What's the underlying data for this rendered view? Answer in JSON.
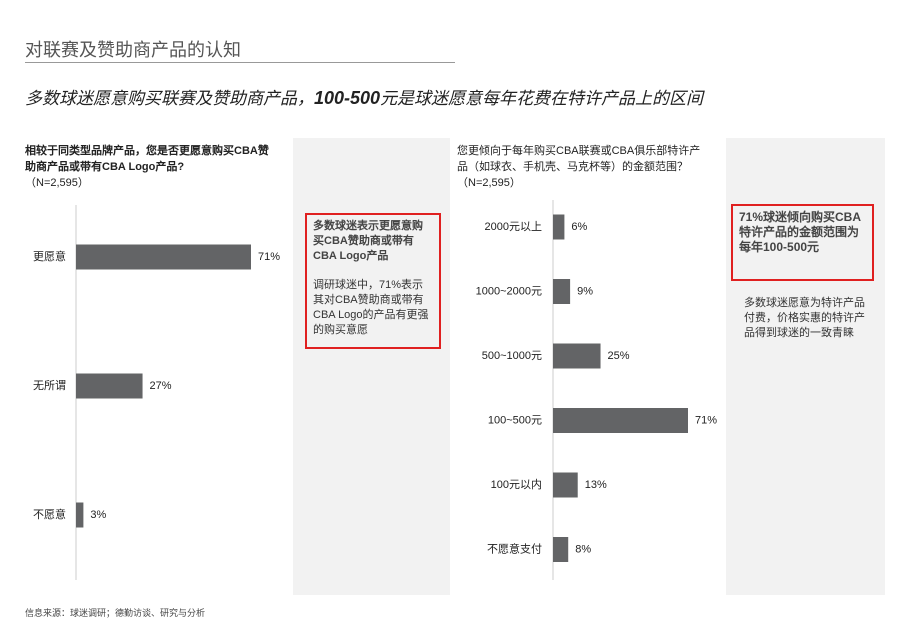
{
  "page": {
    "title": "对联赛及赞助商产品的认知",
    "headline": [
      "多数球迷愿意购买联赛及赞助商产品，",
      "100-500",
      "元是球迷愿意每年花费在特许产品上的区间"
    ],
    "callouts": [
      {
        "heading": "多数球迷表示更愿意购买CBA赞助商或带有CBA Logo产品",
        "body": "调研球迷中，71%表示其对CBA赞助商或带有CBA Logo的产品有更强的购买意愿"
      },
      {
        "heading": "71%球迷倾向购买CBA特许产品的金额范围为每年100-500元",
        "body": "多数球迷愿意为特许产品付费，价格实惠的特许产品得到球迷的一致青睐"
      }
    ],
    "source": "信息来源：球迷调研；德勤访谈、研究与分析"
  },
  "chart_data": [
    {
      "type": "bar",
      "orientation": "horizontal",
      "title": "相较于同类型品牌产品，您是否更愿意购买CBA赞助商产品或带有CBA Logo产品?",
      "subtitle": "（N=2,595）",
      "categories": [
        "更愿意",
        "无所谓",
        "不愿意"
      ],
      "values": [
        71,
        27,
        3
      ],
      "value_labels": [
        "71%",
        "27%",
        "3%"
      ],
      "color": "#636466"
    },
    {
      "type": "bar",
      "orientation": "horizontal",
      "title": "您更倾向于每年购买CBA联赛或CBA俱乐部特许产品（如球衣、手机壳、马克杯等）的金额范围？",
      "subtitle": "（N=2,595）",
      "categories": [
        "2000元以上",
        "1000~2000元",
        "500~1000元",
        "100~500元",
        "100元以内",
        "不愿意支付"
      ],
      "values": [
        6,
        9,
        25,
        71,
        13,
        8
      ],
      "value_labels": [
        "6%",
        "9%",
        "25%",
        "71%",
        "13%",
        "8%"
      ],
      "color": "#636466"
    }
  ]
}
